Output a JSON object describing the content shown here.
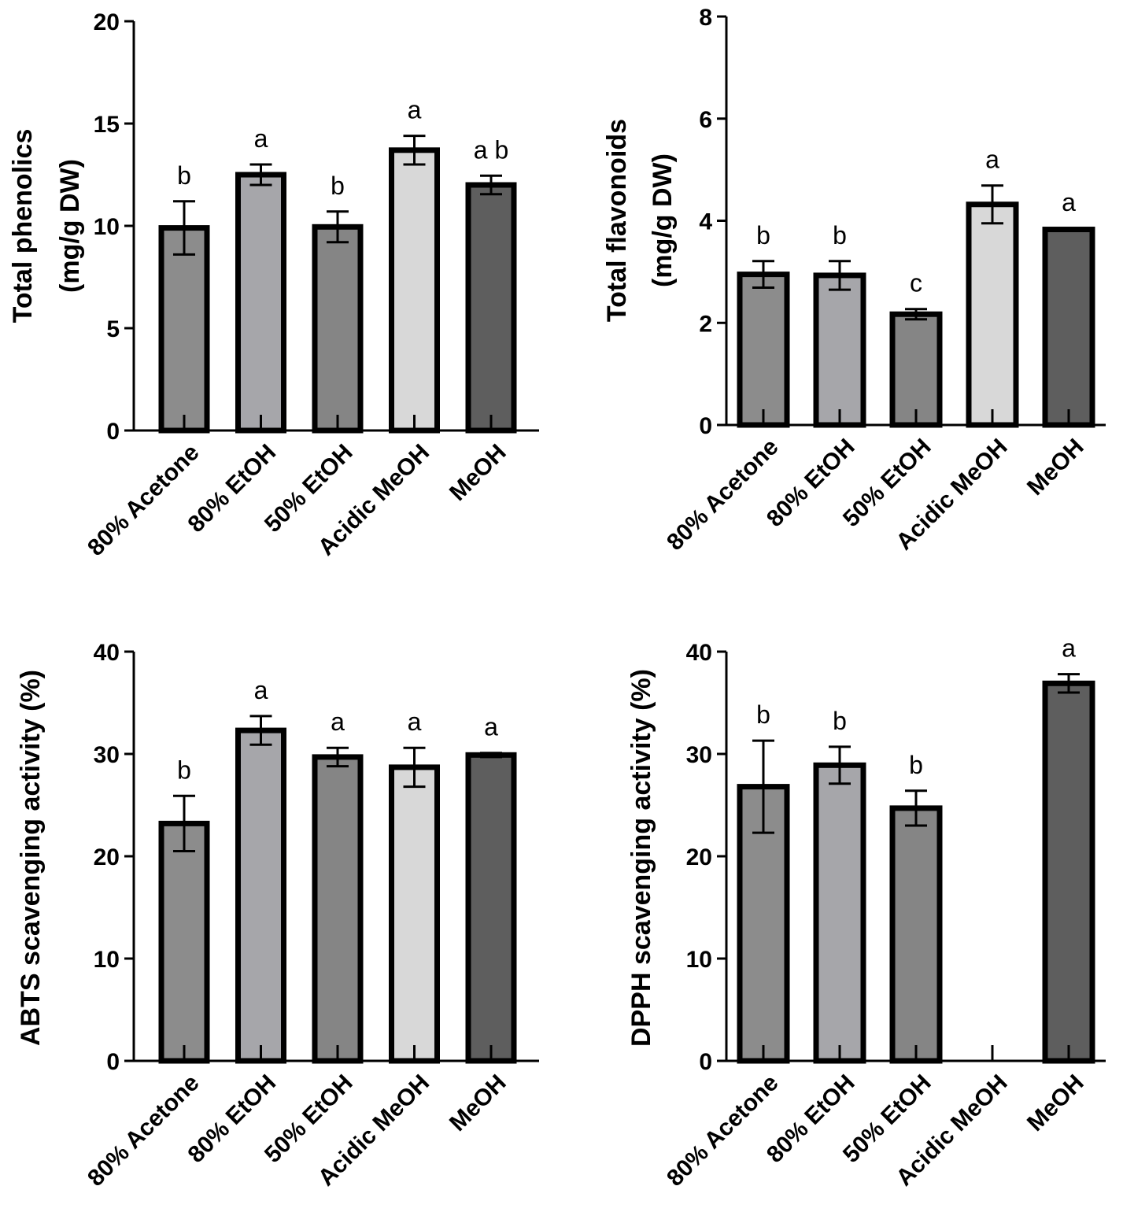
{
  "categories": [
    "80% Acetone",
    "80% EtOH",
    "50% EtOH",
    "Acidic MeOH",
    "MeOH"
  ],
  "bar_colors": [
    "#8c8c8c",
    "#a6a6aa",
    "#858585",
    "#d8d8d8",
    "#5e5e5e"
  ],
  "chart_data": [
    {
      "type": "bar",
      "ylabel_lines": [
        "Total phenolics",
        "(mg/g DW)"
      ],
      "ylim": [
        0,
        20
      ],
      "yticks": [
        0,
        5,
        10,
        15,
        20
      ],
      "categories": [
        "80% Acetone",
        "80% EtOH",
        "50% EtOH",
        "Acidic MeOH",
        "MeOH"
      ],
      "values": [
        9.9,
        12.5,
        9.95,
        13.7,
        12.0
      ],
      "errors": [
        1.3,
        0.5,
        0.75,
        0.7,
        0.45
      ],
      "significance": [
        "b",
        "a",
        "b",
        "a",
        "a b"
      ]
    },
    {
      "type": "bar",
      "ylabel_lines": [
        "Total flavonoids",
        "(mg/g DW)"
      ],
      "ylim": [
        0,
        8
      ],
      "yticks": [
        0,
        2,
        4,
        6,
        8
      ],
      "categories": [
        "80% Acetone",
        "80% EtOH",
        "50% EtOH",
        "Acidic MeOH",
        "MeOH"
      ],
      "values": [
        2.95,
        2.93,
        2.17,
        4.32,
        3.83
      ],
      "errors": [
        0.26,
        0.28,
        0.1,
        0.37,
        0.02
      ],
      "significance": [
        "b",
        "b",
        "c",
        "a",
        "a"
      ]
    },
    {
      "type": "bar",
      "ylabel_lines": [
        "ABTS scavenging activity (%)"
      ],
      "ylim": [
        0,
        40
      ],
      "yticks": [
        0,
        10,
        20,
        30,
        40
      ],
      "categories": [
        "80% Acetone",
        "80% EtOH",
        "50% EtOH",
        "Acidic MeOH",
        "MeOH"
      ],
      "values": [
        23.2,
        32.3,
        29.7,
        28.7,
        29.9
      ],
      "errors": [
        2.7,
        1.4,
        0.9,
        1.9,
        0.2
      ],
      "significance": [
        "b",
        "a",
        "a",
        "a",
        "a"
      ]
    },
    {
      "type": "bar",
      "ylabel_lines": [
        "DPPH scavenging activity (%)"
      ],
      "ylim": [
        0,
        40
      ],
      "yticks": [
        0,
        10,
        20,
        30,
        40
      ],
      "categories": [
        "80% Acetone",
        "80% EtOH",
        "50% EtOH",
        "Acidic MeOH",
        "MeOH"
      ],
      "values": [
        26.8,
        28.9,
        24.7,
        0,
        36.9
      ],
      "errors": [
        4.5,
        1.8,
        1.7,
        0,
        0.9
      ],
      "significance": [
        "b",
        "b",
        "b",
        "",
        "a"
      ]
    }
  ]
}
